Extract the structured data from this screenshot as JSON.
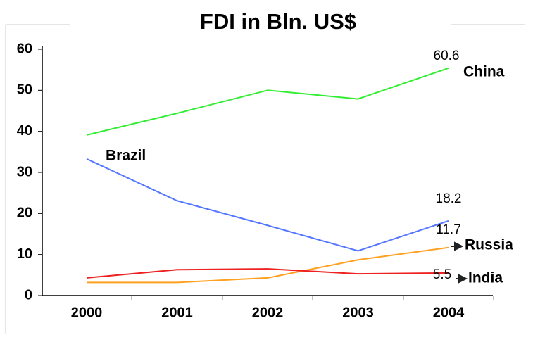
{
  "chart_data": {
    "type": "line",
    "title": "FDI in Bln. US$",
    "categories": [
      "2000",
      "2001",
      "2002",
      "2003",
      "2004"
    ],
    "series": [
      {
        "name": "China",
        "color": "#33ee33",
        "values": [
          39.1,
          44.4,
          50,
          47.9,
          55.4
        ]
      },
      {
        "name": "Brazil",
        "color": "#5577ff",
        "values": [
          33.3,
          23.1,
          17.1,
          10.9,
          18.2
        ]
      },
      {
        "name": "Russia",
        "color": "#ffa020",
        "values": [
          3.2,
          3.2,
          4.3,
          8.7,
          11.7
        ]
      },
      {
        "name": "India",
        "color": "#ee2020",
        "values": [
          4.3,
          6.3,
          6.5,
          5.3,
          5.5
        ]
      }
    ],
    "annotations": [
      "60.6"
    ],
    "ylim": [
      0,
      60
    ],
    "yticks": [
      0,
      10,
      20,
      30,
      40,
      50,
      60
    ]
  }
}
